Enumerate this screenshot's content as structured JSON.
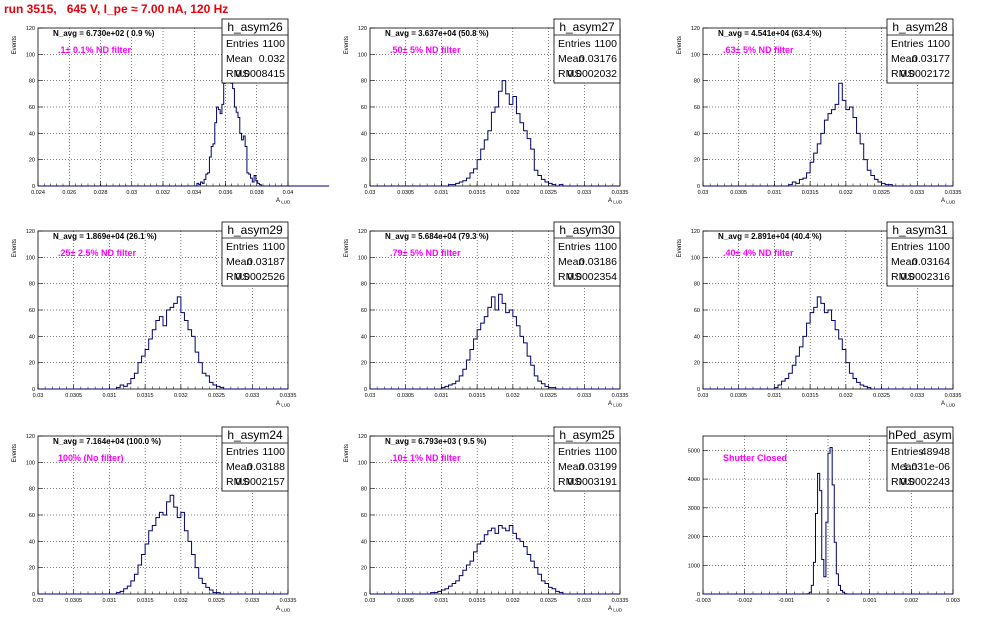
{
  "title": "run 3515,   645 V, I_pe ≈ 7.00 nA, 120 Hz",
  "colors": {
    "title": "#e8000b",
    "hist": "#00006e",
    "annotation": "#ff00ff",
    "grid": "#000000"
  },
  "chart_data": [
    {
      "type": "histogram",
      "stats_title": "h_asym26",
      "stats": {
        "entries": "1100",
        "mean": "0.032",
        "rms": "0.0008415"
      },
      "navg": "N_avg = 6.730e+02  ( 0.9 %)",
      "filter": ".1± 0.1% ND filter",
      "ylabel": "Events",
      "xlabel": "A",
      "xlabel_sub": "LUD",
      "xlim": [
        0.024,
        0.04
      ],
      "ylim": [
        0,
        120
      ],
      "xticks": [
        "0.024",
        "0.026",
        "0.028",
        "0.03",
        "0.032",
        "0.034",
        "0.036",
        "0.038",
        "0.04"
      ],
      "yticks": [
        "0",
        "20",
        "40",
        "60",
        "80",
        "100",
        "120"
      ],
      "grid": true,
      "bins": 140,
      "counts": [
        0,
        0,
        0,
        0,
        0,
        0,
        0,
        0,
        0,
        0,
        0,
        0,
        0,
        0,
        0,
        0,
        0,
        0,
        0,
        0,
        0,
        0,
        0,
        0,
        0,
        0,
        0,
        0,
        0,
        0,
        0,
        0,
        0,
        0,
        0,
        0,
        0,
        0,
        0,
        0,
        0,
        0,
        0,
        0,
        0,
        0,
        0,
        0,
        0,
        0,
        0,
        0,
        0,
        0,
        0,
        0,
        0,
        0,
        0,
        0,
        0,
        0,
        0,
        0,
        0,
        0,
        0,
        0,
        0,
        0,
        0,
        0,
        0,
        0,
        0,
        0,
        0,
        0,
        0,
        0,
        0,
        0,
        0,
        0,
        0,
        0,
        0,
        0,
        0,
        2,
        1,
        3,
        2,
        5,
        9,
        10,
        22,
        30,
        32,
        48,
        60,
        58,
        55,
        62,
        78,
        88,
        94,
        82,
        78,
        74,
        60,
        56,
        52,
        40,
        35,
        38,
        30,
        10,
        9,
        6,
        3,
        8,
        4,
        2,
        1,
        0,
        0,
        0,
        0,
        0,
        0,
        0,
        0,
        0,
        0,
        0,
        0,
        0,
        0,
        0,
        0,
        0,
        0,
        0,
        0,
        0,
        0,
        0,
        0,
        0,
        0,
        0,
        0,
        0,
        0,
        0,
        0,
        0,
        0,
        0,
        0,
        0,
        0
      ]
    },
    {
      "type": "histogram",
      "stats_title": "h_asym27",
      "stats": {
        "entries": "1100",
        "mean": "0.03176",
        "rms": "0.0002032"
      },
      "navg": "N_avg = 3.637e+04  (50.8 %)",
      "filter": ".50± 5% ND filter",
      "ylabel": "Events",
      "xlabel": "A",
      "xlabel_sub": "LUD",
      "xlim": [
        0.03,
        0.0335
      ],
      "ylim": [
        0,
        120
      ],
      "xticks": [
        "0.03",
        "0.0305",
        "0.031",
        "0.0315",
        "0.032",
        "0.0325",
        "0.033",
        "0.0335"
      ],
      "yticks": [
        "0",
        "20",
        "40",
        "60",
        "80",
        "100",
        "120"
      ],
      "grid": true,
      "bins": 70,
      "counts": [
        0,
        0,
        0,
        0,
        0,
        0,
        0,
        0,
        0,
        0,
        0,
        0,
        0,
        0,
        0,
        0,
        0,
        0,
        0,
        0,
        0,
        0,
        1,
        1,
        2,
        3,
        4,
        6,
        10,
        13,
        20,
        28,
        35,
        42,
        56,
        60,
        72,
        80,
        70,
        62,
        68,
        55,
        48,
        42,
        36,
        28,
        12,
        8,
        5,
        3,
        2,
        1,
        0,
        1,
        0,
        0,
        0,
        0,
        0,
        0,
        0,
        0,
        0,
        0,
        0,
        0,
        0,
        0,
        0,
        0
      ]
    },
    {
      "type": "histogram",
      "stats_title": "h_asym28",
      "stats": {
        "entries": "1100",
        "mean": "0.03177",
        "rms": "0.0002172"
      },
      "navg": "N_avg = 4.541e+04  (63.4 %)",
      "filter": ".63± 5% ND filter",
      "ylabel": "Events",
      "xlabel": "A",
      "xlabel_sub": "LUD",
      "xlim": [
        0.03,
        0.0335
      ],
      "ylim": [
        0,
        120
      ],
      "xticks": [
        "0.03",
        "0.0305",
        "0.031",
        "0.0315",
        "0.032",
        "0.0325",
        "0.033",
        "0.0335"
      ],
      "yticks": [
        "0",
        "20",
        "40",
        "60",
        "80",
        "100",
        "120"
      ],
      "grid": true,
      "bins": 70,
      "counts": [
        0,
        0,
        0,
        0,
        0,
        0,
        0,
        0,
        0,
        0,
        0,
        0,
        0,
        0,
        0,
        0,
        0,
        0,
        0,
        0,
        0,
        0,
        0,
        0,
        1,
        3,
        2,
        5,
        6,
        10,
        18,
        25,
        32,
        40,
        50,
        55,
        58,
        62,
        78,
        65,
        58,
        60,
        52,
        40,
        32,
        20,
        12,
        8,
        5,
        3,
        2,
        1,
        1,
        0,
        0,
        0,
        0,
        0,
        0,
        0,
        0,
        0,
        0,
        0,
        0,
        0,
        0,
        0,
        0,
        0
      ]
    },
    {
      "type": "histogram",
      "stats_title": "h_asym29",
      "stats": {
        "entries": "1100",
        "mean": "0.03187",
        "rms": "0.0002526"
      },
      "navg": "N_avg = 1.869e+04  (26.1 %)",
      "filter": ".25± 2.5% ND filter",
      "ylabel": "Events",
      "xlabel": "A",
      "xlabel_sub": "LUD",
      "xlim": [
        0.03,
        0.0335
      ],
      "ylim": [
        0,
        120
      ],
      "xticks": [
        "0.03",
        "0.0305",
        "0.031",
        "0.0315",
        "0.032",
        "0.0325",
        "0.033",
        "0.0335"
      ],
      "yticks": [
        "0",
        "20",
        "40",
        "60",
        "80",
        "100",
        "120"
      ],
      "grid": true,
      "bins": 70,
      "counts": [
        0,
        0,
        0,
        0,
        0,
        0,
        0,
        0,
        0,
        0,
        0,
        0,
        0,
        0,
        0,
        0,
        0,
        0,
        0,
        0,
        0,
        0,
        1,
        3,
        2,
        4,
        8,
        12,
        20,
        25,
        30,
        38,
        45,
        52,
        55,
        48,
        60,
        62,
        65,
        70,
        58,
        52,
        45,
        40,
        28,
        20,
        12,
        10,
        5,
        3,
        2,
        1,
        0,
        0,
        0,
        0,
        0,
        0,
        0,
        0,
        0,
        0,
        0,
        0,
        0,
        0,
        0,
        0,
        0,
        0
      ]
    },
    {
      "type": "histogram",
      "stats_title": "h_asym30",
      "stats": {
        "entries": "1100",
        "mean": "0.03186",
        "rms": "0.0002354"
      },
      "navg": "N_avg = 5.684e+04  (79.3 %)",
      "filter": ".79± 5% ND filter",
      "ylabel": "Events",
      "xlabel": "A",
      "xlabel_sub": "LUD",
      "xlim": [
        0.03,
        0.0335
      ],
      "ylim": [
        0,
        120
      ],
      "xticks": [
        "0.03",
        "0.0305",
        "0.031",
        "0.0315",
        "0.032",
        "0.0325",
        "0.033",
        "0.0335"
      ],
      "yticks": [
        "0",
        "20",
        "40",
        "60",
        "80",
        "100",
        "120"
      ],
      "grid": true,
      "bins": 70,
      "counts": [
        0,
        0,
        0,
        0,
        0,
        0,
        0,
        0,
        0,
        0,
        0,
        0,
        0,
        0,
        0,
        0,
        0,
        0,
        0,
        0,
        1,
        2,
        3,
        4,
        6,
        10,
        15,
        22,
        30,
        38,
        45,
        50,
        55,
        62,
        70,
        60,
        72,
        65,
        58,
        60,
        55,
        48,
        40,
        35,
        25,
        18,
        10,
        6,
        4,
        2,
        1,
        1,
        0,
        0,
        0,
        0,
        0,
        0,
        0,
        0,
        0,
        0,
        0,
        0,
        0,
        0,
        0,
        0,
        0,
        0
      ]
    },
    {
      "type": "histogram",
      "stats_title": "h_asym31",
      "stats": {
        "entries": "1100",
        "mean": "0.03164",
        "rms": "0.0002316"
      },
      "navg": "N_avg = 2.891e+04  (40.4 %)",
      "filter": ".40± 4% ND filter",
      "ylabel": "Events",
      "xlabel": "A",
      "xlabel_sub": "LUD",
      "xlim": [
        0.03,
        0.0335
      ],
      "ylim": [
        0,
        120
      ],
      "xticks": [
        "0.03",
        "0.0305",
        "0.031",
        "0.0315",
        "0.032",
        "0.0325",
        "0.033",
        "0.0335"
      ],
      "yticks": [
        "0",
        "20",
        "40",
        "60",
        "80",
        "100",
        "120"
      ],
      "grid": true,
      "bins": 70,
      "counts": [
        0,
        0,
        0,
        0,
        0,
        0,
        0,
        0,
        0,
        0,
        0,
        0,
        0,
        0,
        0,
        0,
        0,
        0,
        0,
        0,
        1,
        3,
        6,
        8,
        12,
        18,
        25,
        32,
        40,
        50,
        58,
        62,
        70,
        65,
        58,
        60,
        52,
        45,
        38,
        30,
        20,
        12,
        8,
        5,
        3,
        2,
        1,
        0,
        0,
        0,
        0,
        0,
        0,
        0,
        0,
        0,
        0,
        0,
        0,
        0,
        0,
        0,
        0,
        0,
        0,
        0,
        0,
        0,
        0,
        0
      ]
    },
    {
      "type": "histogram",
      "stats_title": "h_asym24",
      "stats": {
        "entries": "1100",
        "mean": "0.03188",
        "rms": "0.0002157"
      },
      "navg": "N_avg = 7.164e+04  (100.0 %)",
      "filter": "100% (No filter)",
      "ylabel": "Events",
      "xlabel": "A",
      "xlabel_sub": "LUD",
      "xlim": [
        0.03,
        0.0335
      ],
      "ylim": [
        0,
        120
      ],
      "xticks": [
        "0.03",
        "0.0305",
        "0.031",
        "0.0315",
        "0.032",
        "0.0325",
        "0.033",
        "0.0335"
      ],
      "yticks": [
        "0",
        "20",
        "40",
        "60",
        "80",
        "100",
        "120"
      ],
      "grid": true,
      "bins": 70,
      "counts": [
        0,
        0,
        0,
        0,
        0,
        0,
        0,
        0,
        0,
        0,
        0,
        0,
        0,
        0,
        0,
        0,
        0,
        0,
        0,
        0,
        0,
        0,
        1,
        2,
        4,
        6,
        10,
        15,
        22,
        30,
        38,
        48,
        52,
        58,
        62,
        60,
        70,
        75,
        66,
        58,
        62,
        48,
        40,
        30,
        20,
        12,
        8,
        5,
        3,
        1,
        1,
        0,
        0,
        0,
        0,
        0,
        0,
        0,
        0,
        0,
        0,
        0,
        0,
        0,
        0,
        0,
        0,
        0,
        0,
        0
      ]
    },
    {
      "type": "histogram",
      "stats_title": "h_asym25",
      "stats": {
        "entries": "1100",
        "mean": "0.03199",
        "rms": "0.0003191"
      },
      "navg": "N_avg = 6.793e+03  ( 9.5 %)",
      "filter": ".10± 1% ND filter",
      "ylabel": "Events",
      "xlabel": "A",
      "xlabel_sub": "LUD",
      "xlim": [
        0.03,
        0.0335
      ],
      "ylim": [
        0,
        120
      ],
      "xticks": [
        "0.03",
        "0.0305",
        "0.031",
        "0.0315",
        "0.032",
        "0.0325",
        "0.033",
        "0.0335"
      ],
      "yticks": [
        "0",
        "20",
        "40",
        "60",
        "80",
        "100",
        "120"
      ],
      "grid": true,
      "bins": 70,
      "counts": [
        0,
        0,
        0,
        0,
        0,
        0,
        0,
        0,
        0,
        0,
        0,
        0,
        0,
        0,
        0,
        0,
        0,
        1,
        1,
        2,
        3,
        4,
        6,
        8,
        10,
        14,
        18,
        22,
        25,
        32,
        38,
        40,
        45,
        48,
        50,
        46,
        52,
        50,
        48,
        52,
        46,
        42,
        40,
        36,
        30,
        25,
        20,
        15,
        10,
        8,
        5,
        4,
        2,
        1,
        0,
        0,
        0,
        0,
        0,
        0,
        0,
        0,
        0,
        0,
        0,
        0,
        0,
        0,
        0,
        0
      ]
    },
    {
      "type": "histogram",
      "stats_title": "hPed_asym",
      "stats": {
        "entries": "48948",
        "mean": "1.031e-06",
        "rms": "0.0002243"
      },
      "navg": "",
      "filter": "Shutter Closed",
      "ylabel": "",
      "xlabel": "",
      "xlabel_sub": "",
      "xlim": [
        -0.003,
        0.003
      ],
      "ylim": [
        0,
        5500
      ],
      "xticks": [
        "-0.003",
        "-0.002",
        "-0.001",
        "0",
        "0.001",
        "0.002",
        "0.003"
      ],
      "yticks": [
        "0",
        "1000",
        "2000",
        "3000",
        "4000",
        "5000"
      ],
      "grid": true,
      "bins": 120,
      "counts": [
        0,
        0,
        0,
        0,
        0,
        0,
        0,
        0,
        0,
        0,
        0,
        0,
        0,
        0,
        0,
        0,
        0,
        0,
        0,
        0,
        0,
        0,
        0,
        0,
        0,
        0,
        0,
        0,
        0,
        0,
        0,
        0,
        0,
        0,
        0,
        0,
        0,
        0,
        0,
        0,
        0,
        0,
        0,
        0,
        0,
        0,
        0,
        0,
        0,
        0,
        10,
        60,
        300,
        1100,
        2800,
        4200,
        3600,
        1200,
        600,
        2500,
        4900,
        5100,
        3800,
        1800,
        700,
        300,
        120,
        60,
        10,
        0,
        0,
        0,
        0,
        0,
        0,
        0,
        0,
        0,
        0,
        0,
        0,
        0,
        0,
        0,
        0,
        0,
        0,
        0,
        0,
        0,
        0,
        0,
        0,
        0,
        0,
        0,
        0,
        0,
        0,
        0,
        0,
        0,
        0,
        0,
        0,
        0,
        0,
        0,
        0,
        0,
        0,
        0,
        0,
        0,
        0,
        0,
        0,
        0,
        0,
        0
      ]
    }
  ]
}
